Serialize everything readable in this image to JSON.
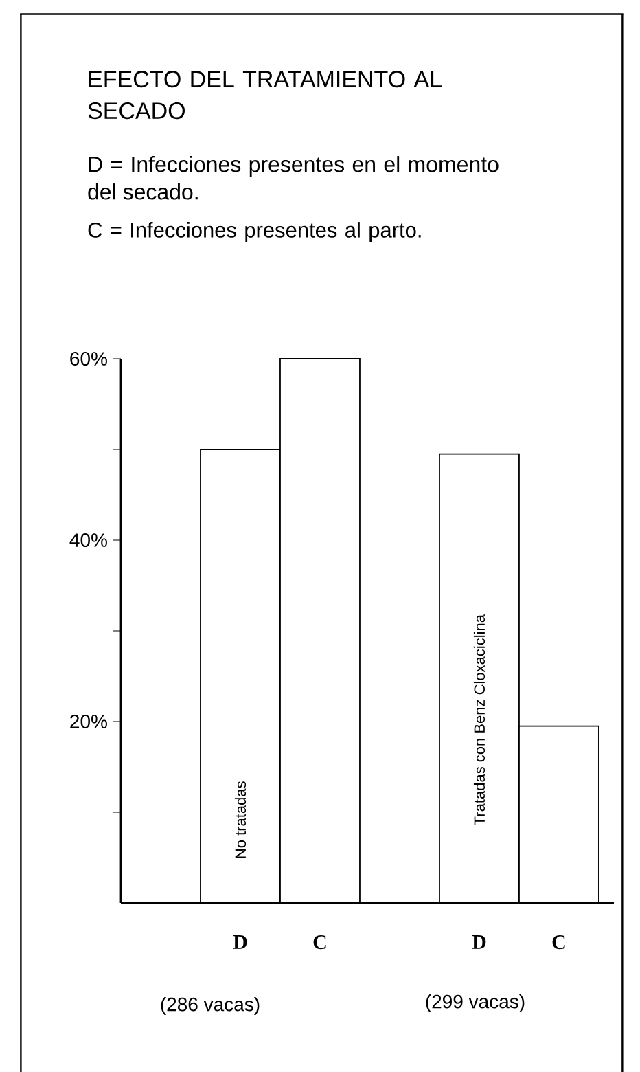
{
  "chart_data": {
    "type": "bar",
    "title": "EFECTO DEL TRATAMIENTO AL SECADO",
    "categories": [
      "D",
      "C",
      "D",
      "C"
    ],
    "values": [
      50,
      60,
      49.5,
      19.5
    ],
    "color": "#ffffff",
    "ylim": [
      0,
      60
    ],
    "yticks": [
      {
        "value": 10,
        "label": null
      },
      {
        "value": 20,
        "label": "20%"
      },
      {
        "value": 30,
        "label": null
      },
      {
        "value": 40,
        "label": "40%"
      },
      {
        "value": 50,
        "label": null
      },
      {
        "value": 60,
        "label": "60%"
      }
    ],
    "annotations": [
      "D = Infecciones presentes en el momento del secado.",
      "C = Infecciones presentes al parto.",
      "No tratadas",
      "Tratadas con Benz Cloxaciclina",
      "(286 vacas)",
      "(299 vacas)"
    ]
  }
}
